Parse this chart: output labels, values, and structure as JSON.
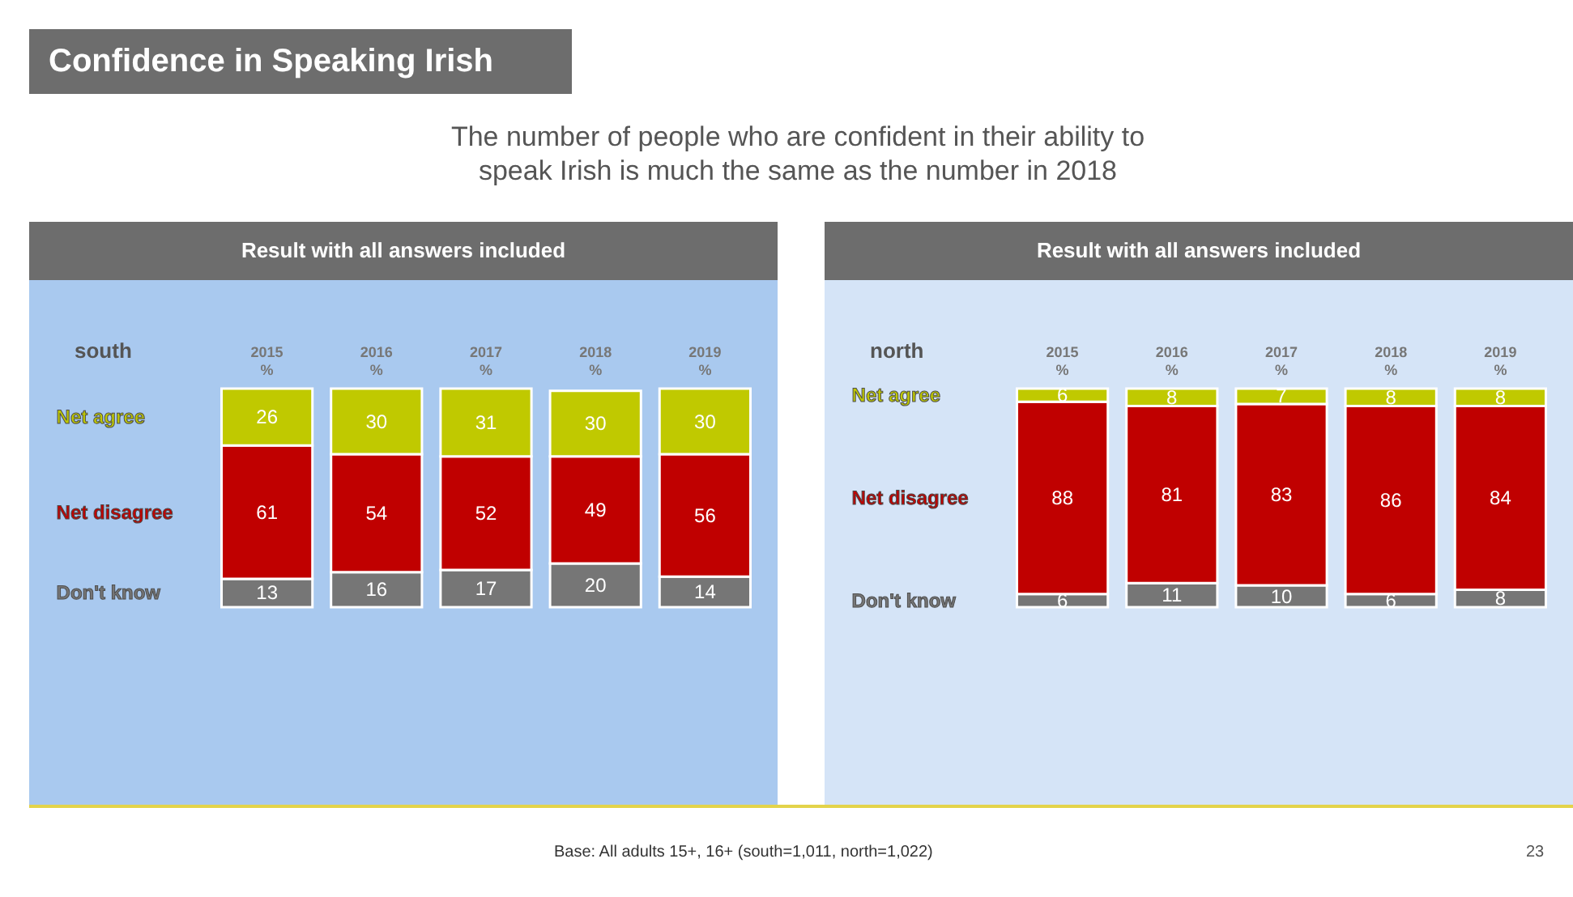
{
  "chart_data": [
    {
      "type": "other",
      "title": "Confidence in Speaking Irish",
      "subtitle": "The number of people who are confident in their ability to speak Irish is much the same as the number in 2018",
      "annotations": [
        "Base: All adults 15+, 16+ (south=1,011, north=1,022)",
        "23"
      ]
    },
    {
      "type": "bar",
      "title": "Result with all answers included",
      "subtitle": "south",
      "stacked": true,
      "data_labels": true,
      "tick_labels": "x",
      "legend": "left",
      "categories": [
        "2015\n%",
        "2016\n%",
        "2017\n%",
        "2018\n%",
        "2019\n%"
      ],
      "series": [
        {
          "name": "Don't know",
          "color": "#767676",
          "values": [
            13,
            16,
            17,
            20,
            14
          ]
        },
        {
          "name": "Net disagree",
          "color": "#c00000",
          "values": [
            61,
            54,
            52,
            49,
            56
          ]
        },
        {
          "name": "Net agree",
          "color": "#c0c900",
          "values": [
            26,
            30,
            31,
            30,
            30
          ]
        }
      ]
    },
    {
      "type": "bar",
      "title": "Result with all answers included",
      "subtitle": "north",
      "stacked": true,
      "data_labels": true,
      "tick_labels": "x",
      "legend": "left",
      "categories": [
        "2015\n%",
        "2016\n%",
        "2017\n%",
        "2018\n%",
        "2019\n%"
      ],
      "series": [
        {
          "name": "Don't know",
          "color": "#767676",
          "values": [
            6,
            11,
            10,
            6,
            8
          ]
        },
        {
          "name": "Net disagree",
          "color": "#c00000",
          "values": [
            88,
            81,
            83,
            86,
            84
          ]
        },
        {
          "name": "Net agree",
          "color": "#c0c900",
          "values": [
            6,
            8,
            7,
            8,
            8
          ]
        }
      ]
    }
  ]
}
